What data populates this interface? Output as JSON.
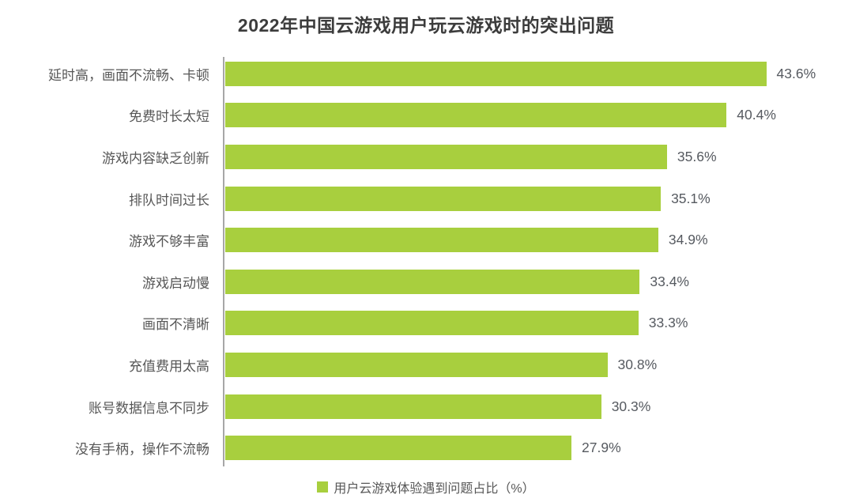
{
  "chart_data": {
    "type": "bar",
    "orientation": "horizontal",
    "title": "2022年中国云游戏用户玩云游戏时的突出问题",
    "categories": [
      "延时高，画面不流畅、卡顿",
      "免费时长太短",
      "游戏内容缺乏创新",
      "排队时间过长",
      "游戏不够丰富",
      "游戏启动慢",
      "画面不清晰",
      "充值费用太高",
      "账号数据信息不同步",
      "没有手柄，操作不流畅"
    ],
    "values": [
      43.6,
      40.4,
      35.6,
      35.1,
      34.9,
      33.4,
      33.3,
      30.8,
      30.3,
      27.9
    ],
    "value_labels": [
      "43.6%",
      "40.4%",
      "35.6%",
      "35.1%",
      "34.9%",
      "33.4%",
      "33.3%",
      "30.8%",
      "30.3%",
      "27.9%"
    ],
    "legend": "用户云游戏体验遇到问题占比（%）",
    "unit": "%",
    "xlim": [
      0,
      50
    ],
    "grid": false,
    "legend_position": "bottom",
    "bar_color": "#a8cf3e",
    "title_color": "#3c3c3c",
    "label_color": "#575757",
    "value_color": "#565a60",
    "axis_line_color": "#a7a7a7"
  }
}
